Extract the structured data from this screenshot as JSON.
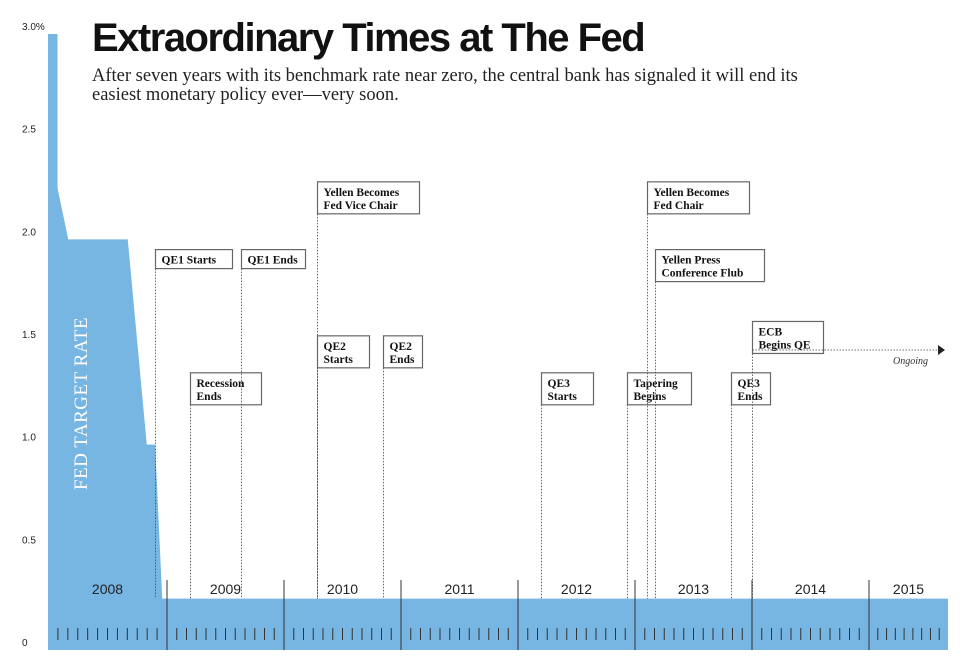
{
  "header": {
    "title": "Extraordinary Times at The Fed",
    "subtitle": "After seven years with its benchmark rate near zero, the central bank has signaled it will end its easiest monetary policy ever—very soon."
  },
  "chart_data": {
    "type": "area",
    "title": "Extraordinary Times at The Fed",
    "subtitle": "After seven years with its benchmark rate near zero, the central bank has signaled it will end its easiest monetary policy ever—very soon.",
    "series_label": "FED TARGET RATE",
    "ylim": [
      0,
      3.0
    ],
    "xlim": [
      2008.0,
      2015.75
    ],
    "y_ticks": [
      {
        "value": 3.0,
        "label": "3.0%"
      },
      {
        "value": 2.5,
        "label": "2.5"
      },
      {
        "value": 2.0,
        "label": "2.0"
      },
      {
        "value": 1.5,
        "label": "1.5"
      },
      {
        "value": 1.0,
        "label": "1.0"
      },
      {
        "value": 0.5,
        "label": "0.5"
      },
      {
        "value": 0,
        "label": "0"
      }
    ],
    "x_labels": [
      {
        "year": 2008,
        "label": "2008"
      },
      {
        "year": 2009,
        "label": "2009"
      },
      {
        "year": 2010,
        "label": "2010"
      },
      {
        "year": 2011,
        "label": "2011"
      },
      {
        "year": 2012,
        "label": "2012"
      },
      {
        "year": 2013,
        "label": "2013"
      },
      {
        "year": 2014,
        "label": "2014"
      },
      {
        "year": 2015,
        "label": "2015"
      }
    ],
    "rate": {
      "x": [
        2008.0,
        2008.0,
        2008.08,
        2008.08,
        2008.17,
        2008.25,
        2008.33,
        2008.67,
        2008.75,
        2008.83,
        2008.85,
        2008.9,
        2008.96,
        2015.75
      ],
      "y": [
        3.0,
        3.0,
        3.0,
        2.25,
        2.0,
        2.0,
        2.0,
        2.0,
        1.5,
        1.0,
        1.0,
        1.0,
        0.25,
        0.25
      ]
    },
    "annotations": [
      {
        "date": 2008.9,
        "lines": [
          "QE1 Starts"
        ],
        "rate_level": 1.95
      },
      {
        "date": 2009.2,
        "lines": [
          "Recession",
          "Ends"
        ],
        "rate_level": 1.35
      },
      {
        "date": 2009.63,
        "lines": [
          "QE1 Ends"
        ],
        "rate_level": 1.95
      },
      {
        "date": 2010.28,
        "lines": [
          "Yellen Becomes",
          "Fed Vice Chair"
        ],
        "rate_level": 2.28
      },
      {
        "date": 2010.28,
        "lines": [
          "QE2",
          "Starts"
        ],
        "rate_level": 1.53
      },
      {
        "date": 2010.85,
        "lines": [
          "QE2",
          "Ends"
        ],
        "rate_level": 1.53
      },
      {
        "date": 2012.2,
        "lines": [
          "QE3",
          "Starts"
        ],
        "rate_level": 1.35
      },
      {
        "date": 2012.93,
        "lines": [
          "Tapering",
          "Begins"
        ],
        "rate_level": 1.35
      },
      {
        "date": 2013.1,
        "lines": [
          "Yellen Becomes",
          "Fed Chair"
        ],
        "rate_level": 2.28
      },
      {
        "date": 2013.17,
        "lines": [
          "Yellen Press",
          "Conference Flub"
        ],
        "rate_level": 1.95
      },
      {
        "date": 2013.82,
        "lines": [
          "QE3",
          "Ends"
        ],
        "rate_level": 1.35
      },
      {
        "date": 2014.0,
        "lines": [
          "ECB",
          "Begins QE"
        ],
        "rate_level": 1.6
      }
    ],
    "ongoing_label": "Ongoing",
    "grid": false
  }
}
